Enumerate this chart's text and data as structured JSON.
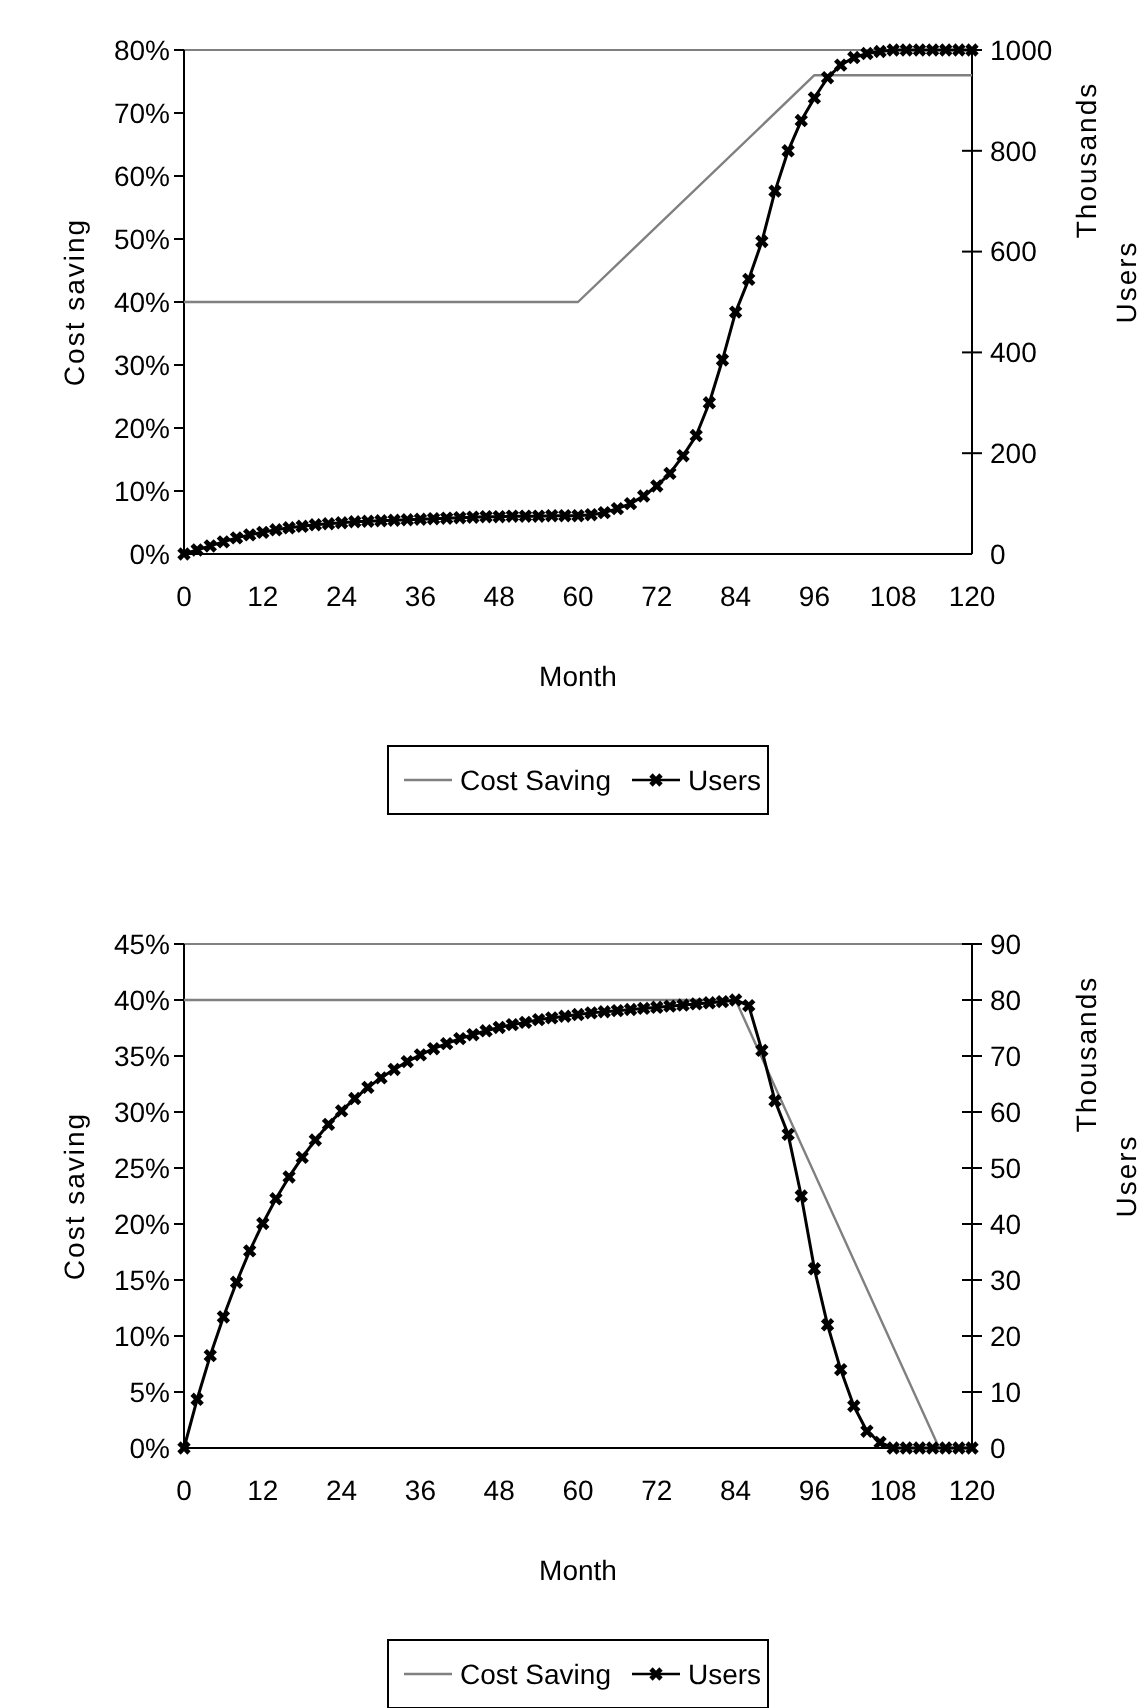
{
  "chart_data": [
    {
      "type": "line",
      "xlabel": "Month",
      "ylabel": "Cost saving",
      "y2label": "Users",
      "annotations": [
        "Thousands"
      ],
      "legend": "bottom",
      "marker": "cross",
      "line_style": "solid",
      "grid": false,
      "xlim": [
        0,
        120
      ],
      "xticks": [
        0,
        12,
        24,
        36,
        48,
        60,
        72,
        84,
        96,
        108,
        120
      ],
      "ylim": [
        0,
        80
      ],
      "yticks": [
        {
          "value": 0,
          "label": "0%"
        },
        {
          "value": 10,
          "label": "10%"
        },
        {
          "value": 20,
          "label": "20%"
        },
        {
          "value": 30,
          "label": "30%"
        },
        {
          "value": 40,
          "label": "40%"
        },
        {
          "value": 50,
          "label": "50%"
        },
        {
          "value": 60,
          "label": "60%"
        },
        {
          "value": 70,
          "label": "70%"
        },
        {
          "value": 80,
          "label": "80%"
        }
      ],
      "y2lim": [
        0,
        1000
      ],
      "y2ticks": [
        0,
        200,
        400,
        600,
        800,
        1000
      ],
      "series": [
        {
          "name": "Cost Saving",
          "color": "#808080",
          "marker": "none",
          "x": [
            0,
            60,
            96,
            120
          ],
          "values": [
            40,
            40,
            76,
            76
          ]
        },
        {
          "name": "Users",
          "color": "#000000",
          "axis": "y2",
          "x": [
            0,
            2,
            4,
            6,
            8,
            10,
            12,
            14,
            16,
            18,
            20,
            22,
            24,
            26,
            28,
            30,
            32,
            34,
            36,
            38,
            40,
            42,
            44,
            46,
            48,
            50,
            52,
            54,
            56,
            58,
            60,
            62,
            64,
            66,
            68,
            70,
            72,
            74,
            76,
            78,
            80,
            82,
            84,
            86,
            88,
            90,
            92,
            94,
            96,
            98,
            100,
            102,
            104,
            106,
            108,
            110,
            112,
            114,
            116,
            118,
            120
          ],
          "values": [
            0,
            8,
            16,
            24,
            32,
            38,
            43,
            48,
            52,
            55,
            58,
            60,
            62,
            64,
            65,
            66,
            67,
            68,
            69,
            70,
            71,
            72,
            73,
            74,
            74,
            75,
            75,
            75,
            76,
            76,
            76,
            78,
            82,
            90,
            100,
            115,
            135,
            160,
            195,
            235,
            300,
            385,
            480,
            545,
            620,
            720,
            800,
            860,
            905,
            945,
            970,
            985,
            993,
            997,
            1000,
            1000,
            1000,
            1000,
            1000,
            1000,
            1000
          ]
        }
      ]
    },
    {
      "type": "line",
      "xlabel": "Month",
      "ylabel": "Cost saving",
      "y2label": "Users",
      "annotations": [
        "Thousands"
      ],
      "legend": "bottom",
      "marker": "cross",
      "line_style": "solid",
      "grid": false,
      "xlim": [
        0,
        120
      ],
      "xticks": [
        0,
        12,
        24,
        36,
        48,
        60,
        72,
        84,
        96,
        108,
        120
      ],
      "ylim": [
        0,
        45
      ],
      "yticks": [
        {
          "value": 0,
          "label": "0%"
        },
        {
          "value": 5,
          "label": "5%"
        },
        {
          "value": 10,
          "label": "10%"
        },
        {
          "value": 15,
          "label": "15%"
        },
        {
          "value": 20,
          "label": "20%"
        },
        {
          "value": 25,
          "label": "25%"
        },
        {
          "value": 30,
          "label": "30%"
        },
        {
          "value": 35,
          "label": "35%"
        },
        {
          "value": 40,
          "label": "40%"
        },
        {
          "value": 45,
          "label": "45%"
        }
      ],
      "y2lim": [
        0,
        90
      ],
      "y2ticks": [
        0,
        10,
        20,
        30,
        40,
        50,
        60,
        70,
        80,
        90
      ],
      "series": [
        {
          "name": "Cost Saving",
          "color": "#808080",
          "marker": "none",
          "x": [
            0,
            84,
            115,
            120
          ],
          "values": [
            40,
            40,
            0,
            0
          ]
        },
        {
          "name": "Users",
          "color": "#000000",
          "axis": "y2",
          "x": [
            0,
            2,
            4,
            6,
            8,
            10,
            12,
            14,
            16,
            18,
            20,
            22,
            24,
            26,
            28,
            30,
            32,
            34,
            36,
            38,
            40,
            42,
            44,
            46,
            48,
            50,
            52,
            54,
            56,
            58,
            60,
            62,
            64,
            66,
            68,
            70,
            72,
            74,
            76,
            78,
            80,
            82,
            84,
            86,
            88,
            90,
            92,
            94,
            96,
            98,
            100,
            102,
            104,
            106,
            108,
            110,
            112,
            114,
            116,
            118,
            120
          ],
          "values": [
            0,
            8.7,
            16.5,
            23.4,
            29.6,
            35.2,
            40.1,
            44.5,
            48.4,
            51.9,
            55,
            57.8,
            60.2,
            62.4,
            64.4,
            66.1,
            67.6,
            69,
            70.2,
            71.3,
            72.2,
            73.1,
            73.8,
            74.5,
            75.1,
            75.6,
            76,
            76.5,
            76.8,
            77.1,
            77.4,
            77.7,
            77.9,
            78.1,
            78.3,
            78.5,
            78.7,
            78.9,
            79.1,
            79.3,
            79.5,
            79.7,
            80,
            79,
            71,
            62,
            56,
            45,
            32,
            22,
            14,
            7.5,
            3,
            1,
            0,
            0,
            0,
            0,
            0,
            0,
            0
          ]
        }
      ]
    }
  ]
}
